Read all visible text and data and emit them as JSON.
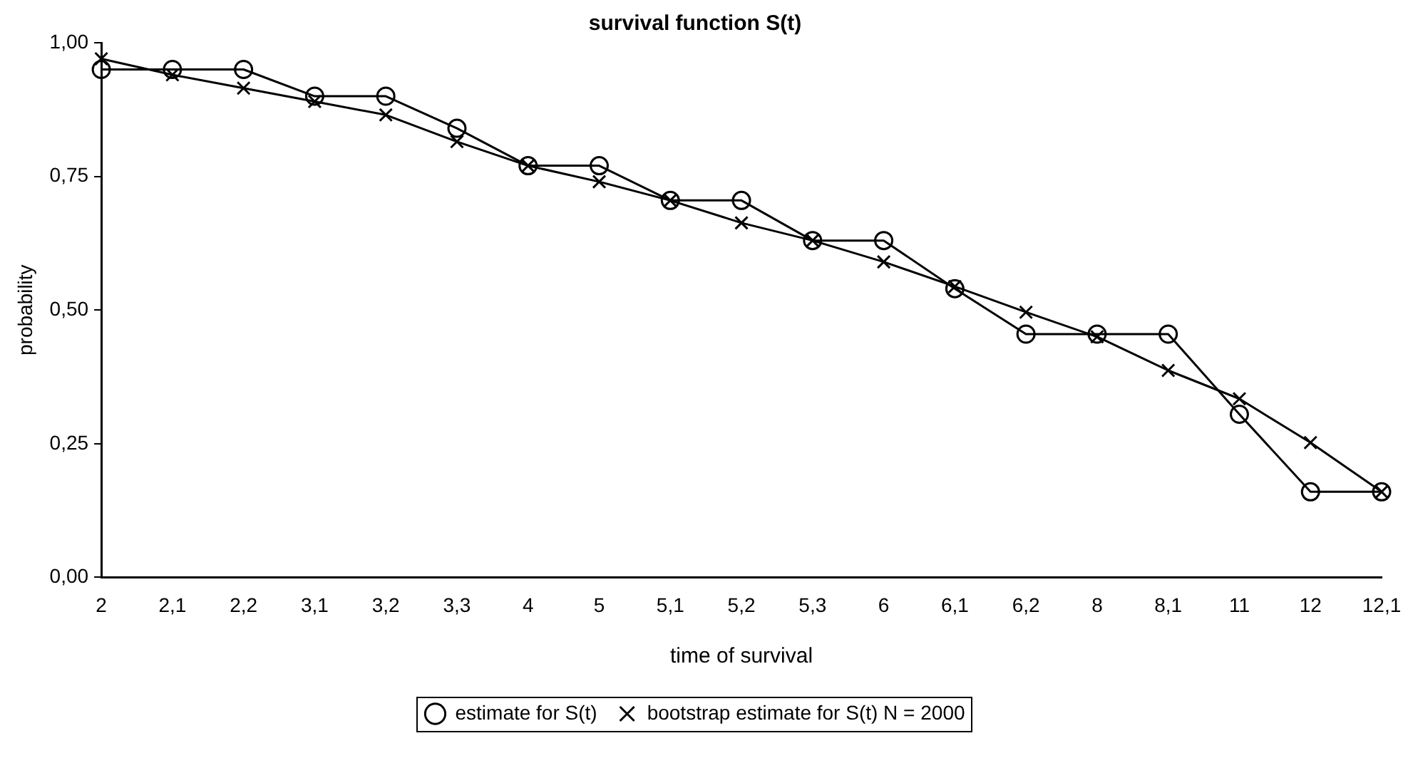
{
  "chart_data": {
    "type": "line",
    "title": "survival function S(t)",
    "xlabel": "time of survival",
    "ylabel": "probability",
    "categories": [
      "2",
      "2,1",
      "2,2",
      "3,1",
      "3,2",
      "3,3",
      "4",
      "5",
      "5,1",
      "5,2",
      "5,3",
      "6",
      "6,1",
      "6,2",
      "8",
      "8,1",
      "11",
      "12",
      "12,1"
    ],
    "series": [
      {
        "name": "estimate for S(t)",
        "color": "#000000",
        "marker": "circle",
        "values": [
          0.95,
          0.95,
          0.95,
          0.9,
          0.9,
          0.84,
          0.77,
          0.77,
          0.705,
          0.705,
          0.63,
          0.63,
          0.54,
          0.455,
          0.455,
          0.455,
          0.305,
          0.16,
          0.16
        ]
      },
      {
        "name": "bootstrap estimate for S(t) N = 2000",
        "color": "#000000",
        "marker": "cross",
        "values": [
          0.97,
          0.94,
          0.915,
          0.89,
          0.865,
          0.815,
          0.77,
          0.74,
          0.705,
          0.663,
          0.63,
          0.59,
          0.544,
          0.496,
          0.45,
          0.387,
          0.334,
          0.252,
          0.16
        ]
      }
    ],
    "ylim": [
      0,
      1
    ],
    "yticks": [
      {
        "value": 0,
        "label": "0,00"
      },
      {
        "value": 0.25,
        "label": "0,25"
      },
      {
        "value": 0.5,
        "label": "0,50"
      },
      {
        "value": 0.75,
        "label": "0,75"
      },
      {
        "value": 1,
        "label": "1,00"
      }
    ],
    "grid": false,
    "legend": "bottom"
  }
}
